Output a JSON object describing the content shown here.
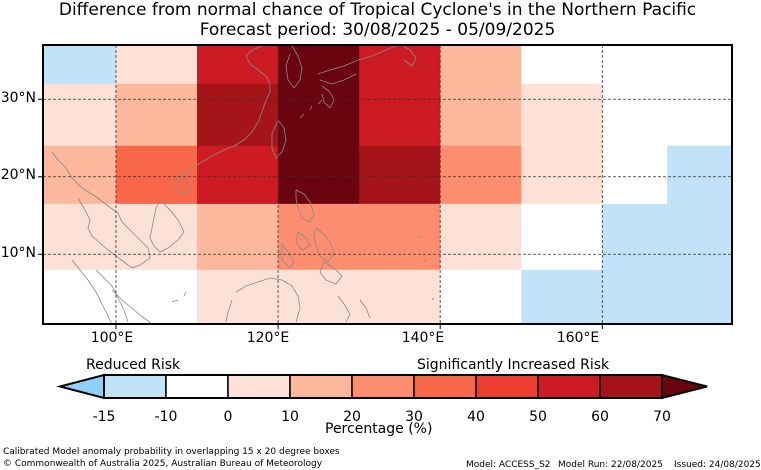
{
  "title": {
    "line1": "Difference from normal chance of Tropical Cyclone's in the Northern Pacific",
    "line2": "Forecast period: 30/08/2025 - 05/09/2025"
  },
  "axes": {
    "x_ticks": [
      {
        "value": 100,
        "label": "100°E"
      },
      {
        "value": 120,
        "label": "120°E"
      },
      {
        "value": 140,
        "label": "140°E"
      },
      {
        "value": 160,
        "label": "160°E"
      }
    ],
    "y_ticks": [
      {
        "value": 30,
        "label": "30°N"
      },
      {
        "value": 20,
        "label": "20°N"
      },
      {
        "value": 10,
        "label": "10°N"
      }
    ],
    "lon_range": [
      91,
      176
    ],
    "lat_range": [
      1,
      37
    ],
    "gridlines": "dashed"
  },
  "grid": {
    "lon_edges": [
      91,
      100,
      110,
      120,
      130,
      140,
      150,
      160,
      168,
      176
    ],
    "lat_rows": [
      {
        "lat_top": 37,
        "lat_bottom": 32,
        "cells": [
          -12.5,
          5,
          55,
          70,
          55,
          15,
          -5,
          -5,
          -5
        ]
      },
      {
        "lat_top": 32,
        "lat_bottom": 24,
        "cells": [
          0,
          15,
          65,
          70,
          55,
          15,
          0,
          -5,
          -5
        ]
      },
      {
        "lat_top": 24,
        "lat_bottom": 16.5,
        "cells": [
          15,
          35,
          55,
          70,
          65,
          25,
          0,
          -5,
          -12.5
        ]
      },
      {
        "lat_top": 16.5,
        "lat_bottom": 8,
        "cells": [
          5,
          5,
          15,
          25,
          25,
          5,
          -5,
          -12.5,
          -12.5
        ]
      },
      {
        "lat_top": 8,
        "lat_bottom": 1,
        "cells": [
          -5,
          -5,
          0,
          0,
          0,
          -5,
          -12.5,
          -12.5,
          -12.5
        ]
      }
    ]
  },
  "colorbar": {
    "left_label": "Reduced Risk",
    "right_label": "Significantly Increased Risk",
    "xlabel": "Percentage (%)",
    "ticks": [
      "-15",
      "-10",
      "0",
      "10",
      "20",
      "30",
      "40",
      "50",
      "60",
      "70"
    ],
    "bins": [
      {
        "min": -15,
        "max": -10,
        "color": "#c1e3fa"
      },
      {
        "min": -10,
        "max": 0,
        "color": "#ffffff"
      },
      {
        "min": 0,
        "max": 10,
        "color": "#fde0d6"
      },
      {
        "min": 10,
        "max": 20,
        "color": "#fbb89d"
      },
      {
        "min": 20,
        "max": 30,
        "color": "#fc8e6f"
      },
      {
        "min": 30,
        "max": 40,
        "color": "#f96749"
      },
      {
        "min": 40,
        "max": 50,
        "color": "#ec3d30"
      },
      {
        "min": 50,
        "max": 60,
        "color": "#cc1b22"
      },
      {
        "min": 60,
        "max": 70,
        "color": "#a51418"
      }
    ],
    "under_color": "#8dd0f8",
    "over_color": "#6a0510"
  },
  "footer": {
    "description": "Calibrated Model anomaly probability in overlapping 15 x 20 degree boxes",
    "copyright": "© Commonwealth of Australia 2025, Australian Bureau of Meteorology",
    "model": "Model: ACCESS_S2",
    "model_run": "Model Run: 22/08/2025",
    "issued": "Issued: 24/08/2025"
  }
}
